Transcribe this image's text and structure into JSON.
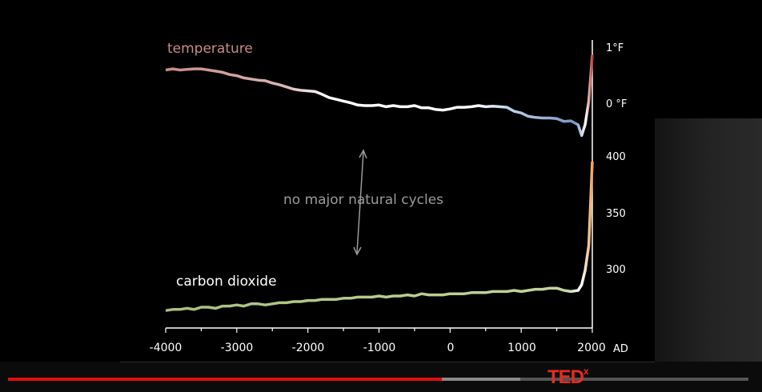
{
  "slide": {
    "temperature_label": "temperature",
    "co2_label": "carbon dioxide",
    "annotation": "no major natural cycles"
  },
  "chart_data": {
    "type": "line",
    "x": [
      -4000,
      -3900,
      -3800,
      -3700,
      -3600,
      -3500,
      -3400,
      -3300,
      -3200,
      -3100,
      -3000,
      -2900,
      -2800,
      -2700,
      -2600,
      -2500,
      -2400,
      -2300,
      -2200,
      -2100,
      -2000,
      -1900,
      -1800,
      -1700,
      -1600,
      -1500,
      -1400,
      -1300,
      -1200,
      -1100,
      -1000,
      -900,
      -800,
      -700,
      -600,
      -500,
      -400,
      -300,
      -200,
      -100,
      0,
      100,
      200,
      300,
      400,
      500,
      600,
      700,
      800,
      900,
      1000,
      1100,
      1200,
      1300,
      1400,
      1500,
      1600,
      1700,
      1800,
      1850,
      1900,
      1950,
      2000
    ],
    "xlim": [
      -4000,
      2000
    ],
    "x_ticks": [
      "-4000",
      "-3000",
      "-2000",
      "-1000",
      "0",
      "1000",
      "2000"
    ],
    "x_unit": "AD",
    "series": [
      {
        "name": "temperature",
        "y_ticks": [
          "1°F",
          "0 °F"
        ],
        "ylim": [
          -0.7,
          1.0
        ],
        "values": [
          0.61,
          0.63,
          0.61,
          0.62,
          0.63,
          0.63,
          0.61,
          0.59,
          0.57,
          0.53,
          0.51,
          0.47,
          0.45,
          0.43,
          0.42,
          0.38,
          0.35,
          0.31,
          0.27,
          0.25,
          0.24,
          0.23,
          0.18,
          0.12,
          0.09,
          0.06,
          0.03,
          -0.01,
          -0.02,
          -0.02,
          -0.01,
          -0.04,
          -0.02,
          -0.04,
          -0.04,
          -0.02,
          -0.06,
          -0.06,
          -0.09,
          -0.1,
          -0.08,
          -0.05,
          -0.05,
          -0.04,
          -0.02,
          -0.04,
          -0.03,
          -0.04,
          -0.05,
          -0.12,
          -0.15,
          -0.21,
          -0.23,
          -0.24,
          -0.24,
          -0.25,
          -0.3,
          -0.29,
          -0.36,
          -0.55,
          -0.35,
          0.05,
          0.88
        ]
      },
      {
        "name": "carbon dioxide",
        "y_ticks": [
          "400",
          "350",
          "300"
        ],
        "ylim": [
          250,
          400
        ],
        "values": [
          262,
          263,
          263,
          264,
          263,
          265,
          265,
          264,
          266,
          266,
          267,
          266,
          268,
          268,
          267,
          268,
          269,
          269,
          270,
          270,
          271,
          271,
          272,
          272,
          272,
          273,
          273,
          274,
          274,
          274,
          275,
          274,
          275,
          275,
          276,
          275,
          277,
          276,
          276,
          276,
          277,
          277,
          277,
          278,
          278,
          278,
          279,
          279,
          279,
          280,
          279,
          280,
          281,
          281,
          282,
          282,
          280,
          279,
          280,
          285,
          298,
          320,
          395
        ]
      }
    ]
  },
  "player": {
    "played_fraction": 0.586,
    "buffered_fraction": 0.692
  },
  "brand": {
    "logo_text": "TED",
    "logo_superscript": "x"
  }
}
